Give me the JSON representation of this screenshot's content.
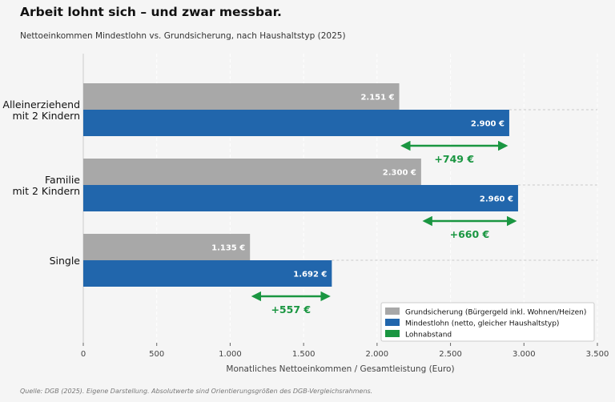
{
  "title": "Arbeit lohnt sich – und zwar messbar.",
  "subtitle": "Nettoeinkommen Mindestlohn vs. Grundsicherung, nach Haushaltstyp (2025)",
  "source": "Quelle: DGB (2025). Eigene Darstellung. Absolutwerte sind Orientierungsgrößen des DGB-Vergleichsrahmens.",
  "chart_data": {
    "type": "bar",
    "orientation": "horizontal",
    "categories": [
      [
        "Alleinerziehend",
        "mit 2 Kindern"
      ],
      [
        "Familie",
        "mit 2 Kindern"
      ],
      [
        "Single"
      ]
    ],
    "series": [
      {
        "name": "Grundsicherung (Bürgergeld inkl. Wohnen/Heizen)",
        "color": "#a8a8a8",
        "values": [
          2151,
          2300,
          1135
        ],
        "labels": [
          "2.151 €",
          "2.300 €",
          "1.135 €"
        ]
      },
      {
        "name": "Mindestlohn (netto, gleicher Haushaltstyp)",
        "color": "#2166ac",
        "values": [
          2900,
          2960,
          1692
        ],
        "labels": [
          "2.900 €",
          "2.960 €",
          "1.692 €"
        ]
      }
    ],
    "gap": {
      "name": "Lohnabstand",
      "color": "#1a9641",
      "values": [
        749,
        660,
        557
      ],
      "labels": [
        "+749 €",
        "+660 €",
        "+557 €"
      ]
    },
    "xlabel": "Monatliches Nettoeinkommen / Gesamtleistung (Euro)",
    "xlim": [
      0,
      3500
    ],
    "xticks": [
      0,
      500,
      1000,
      1500,
      2000,
      2500,
      3000,
      3500
    ],
    "xtick_labels": [
      "0",
      "500",
      "1.000",
      "1.500",
      "2.000",
      "2.500",
      "3.000",
      "3.500"
    ],
    "grid": "vertical dashed",
    "legend_position": "lower right"
  }
}
